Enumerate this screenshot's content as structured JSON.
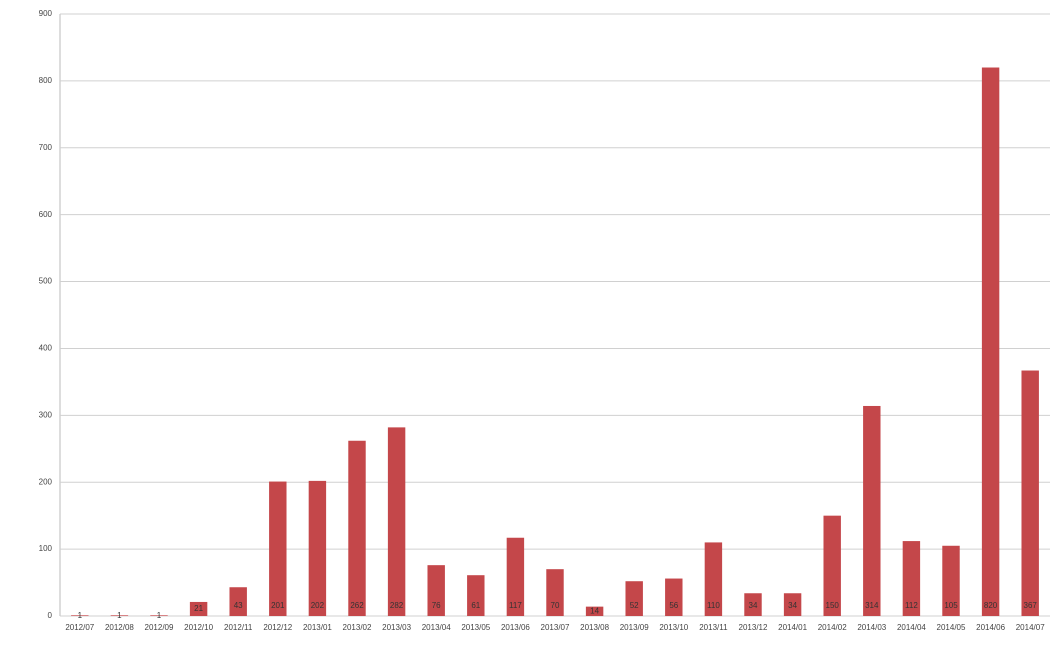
{
  "chart_data": {
    "type": "bar",
    "categories": [
      "2012/07",
      "2012/08",
      "2012/09",
      "2012/10",
      "2012/11",
      "2012/12",
      "2013/01",
      "2013/02",
      "2013/03",
      "2013/04",
      "2013/05",
      "2013/06",
      "2013/07",
      "2013/08",
      "2013/09",
      "2013/10",
      "2013/11",
      "2013/12",
      "2014/01",
      "2014/02",
      "2014/03",
      "2014/04",
      "2014/05",
      "2014/06",
      "2014/07"
    ],
    "values": [
      1,
      1,
      1,
      21,
      43,
      201,
      202,
      262,
      282,
      76,
      61,
      117,
      70,
      14,
      52,
      56,
      110,
      34,
      34,
      150,
      314,
      112,
      105,
      820,
      367
    ],
    "color": "#c4474a",
    "ylim": [
      0,
      900
    ],
    "yticks": [
      0,
      100,
      200,
      300,
      400,
      500,
      600,
      700,
      800,
      900
    ],
    "grid": true
  }
}
